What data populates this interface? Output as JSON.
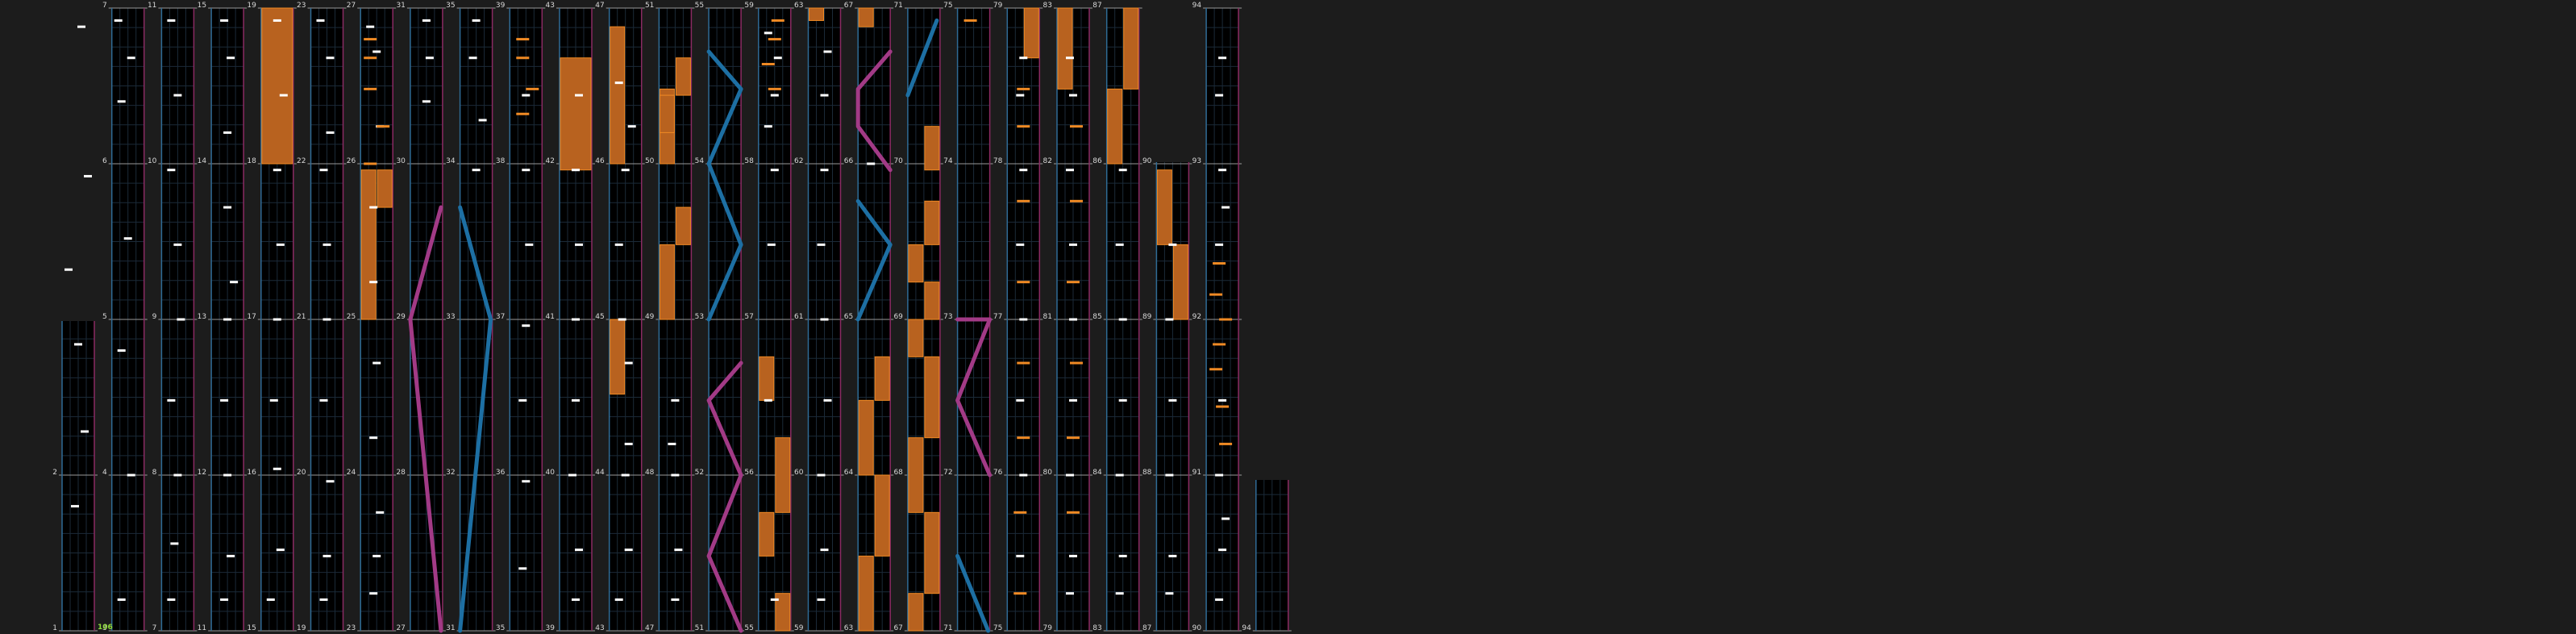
{
  "colors": {
    "background": "#1c1c1c",
    "lane_bg": "#000000",
    "left_edge": "#2f6b96",
    "right_edge": "#8a2a62",
    "grid": "#1b2a38",
    "note": "#ffffff",
    "note_alt": "#f08a24",
    "hold": "#b8621f",
    "hold_edge": "#f08a24",
    "slide_blue": "#1d6fa3",
    "slide_pink": "#a23a86",
    "measure_text": "#d8d8d8",
    "combo_text": "#8fdc3a"
  },
  "combo_label": "106",
  "columns": [
    {
      "measures": [
        "1",
        "2",
        "3"
      ],
      "notes": [
        [
          0.2,
          0.4
        ],
        [
          0.32,
          0.7
        ],
        [
          0.46,
          0.5
        ],
        [
          0.58,
          0.2
        ],
        [
          0.73,
          0.8
        ],
        [
          0.97,
          0.6
        ]
      ]
    },
    {
      "measures": [
        "3",
        "4",
        "5",
        "6",
        "7"
      ],
      "notes": [
        [
          0.05,
          0.3
        ],
        [
          0.25,
          0.6
        ],
        [
          0.45,
          0.3
        ],
        [
          0.63,
          0.5
        ],
        [
          0.85,
          0.3
        ],
        [
          0.92,
          0.6
        ],
        [
          0.98,
          0.2
        ]
      ]
    },
    {
      "measures": [
        "7",
        "8",
        "9",
        "10",
        "11"
      ],
      "notes": [
        [
          0.05,
          0.3
        ],
        [
          0.14,
          0.4
        ],
        [
          0.25,
          0.5
        ],
        [
          0.37,
          0.3
        ],
        [
          0.5,
          0.6
        ],
        [
          0.62,
          0.5
        ],
        [
          0.74,
          0.3
        ],
        [
          0.86,
          0.5
        ],
        [
          0.98,
          0.3
        ]
      ]
    },
    {
      "measures": [
        "11",
        "12",
        "13",
        "14",
        "15"
      ],
      "notes": [
        [
          0.05,
          0.4
        ],
        [
          0.12,
          0.6
        ],
        [
          0.25,
          0.5
        ],
        [
          0.37,
          0.4
        ],
        [
          0.5,
          0.5
        ],
        [
          0.56,
          0.7
        ],
        [
          0.68,
          0.5
        ],
        [
          0.8,
          0.5
        ],
        [
          0.92,
          0.6
        ],
        [
          0.98,
          0.4
        ]
      ]
    },
    {
      "measures": [
        "15",
        "16",
        "17",
        "18",
        "19"
      ],
      "notes": [
        [
          0.05,
          0.3
        ],
        [
          0.13,
          0.6
        ],
        [
          0.26,
          0.5
        ],
        [
          0.37,
          0.4
        ],
        [
          0.5,
          0.5
        ],
        [
          0.62,
          0.6
        ],
        [
          0.74,
          0.5
        ],
        [
          0.86,
          0.7
        ],
        [
          0.98,
          0.5
        ]
      ],
      "holds": [
        [
          0.75,
          1.0,
          0.0,
          1.0
        ]
      ]
    },
    {
      "measures": [
        "19",
        "20",
        "21",
        "22",
        "23"
      ],
      "notes": [
        [
          0.05,
          0.4
        ],
        [
          0.12,
          0.5
        ],
        [
          0.24,
          0.6
        ],
        [
          0.37,
          0.4
        ],
        [
          0.5,
          0.5
        ],
        [
          0.62,
          0.5
        ],
        [
          0.74,
          0.4
        ],
        [
          0.8,
          0.6
        ],
        [
          0.92,
          0.6
        ],
        [
          0.98,
          0.3
        ]
      ]
    },
    {
      "measures": [
        "23",
        "24",
        "25",
        "26",
        "27"
      ],
      "notes": [
        [
          0.06,
          0.4
        ],
        [
          0.12,
          0.5
        ],
        [
          0.19,
          0.6
        ],
        [
          0.31,
          0.4
        ],
        [
          0.43,
          0.5
        ],
        [
          0.56,
          0.4
        ],
        [
          0.68,
          0.4
        ],
        [
          0.81,
          0.6
        ],
        [
          0.93,
          0.5
        ],
        [
          0.97,
          0.3
        ]
      ],
      "orange": [
        [
          0.75,
          0.3
        ],
        [
          0.81,
          0.7
        ],
        [
          0.87,
          0.3
        ],
        [
          0.92,
          0.3
        ],
        [
          0.95,
          0.3
        ]
      ],
      "holds": [
        [
          0.5,
          0.74,
          0.0,
          0.5
        ],
        [
          0.68,
          0.74,
          0.5,
          1.0
        ]
      ]
    },
    {
      "measures": [
        "27",
        "28",
        "29",
        "30",
        "31"
      ],
      "slides": [
        {
          "color": "pink",
          "points": [
            [
              0.0,
              0.95
            ],
            [
              0.5,
              0.0
            ],
            [
              0.68,
              0.95
            ]
          ]
        }
      ],
      "notes": [
        [
          0.85,
          0.5
        ],
        [
          0.92,
          0.6
        ],
        [
          0.98,
          0.5
        ]
      ]
    },
    {
      "measures": [
        "31",
        "32",
        "33",
        "34",
        "35"
      ],
      "slides": [
        {
          "color": "blue",
          "points": [
            [
              0.0,
              0.0
            ],
            [
              0.5,
              0.95
            ],
            [
              0.68,
              0.0
            ]
          ]
        }
      ],
      "notes": [
        [
          0.74,
          0.5
        ],
        [
          0.82,
          0.7
        ],
        [
          0.92,
          0.4
        ],
        [
          0.98,
          0.5
        ]
      ]
    },
    {
      "measures": [
        "35",
        "36",
        "37",
        "38",
        "39"
      ],
      "notes": [
        [
          0.1,
          0.4
        ],
        [
          0.24,
          0.5
        ],
        [
          0.37,
          0.4
        ],
        [
          0.49,
          0.5
        ],
        [
          0.62,
          0.6
        ],
        [
          0.74,
          0.5
        ],
        [
          0.86,
          0.5
        ]
      ],
      "orange": [
        [
          0.83,
          0.4
        ],
        [
          0.87,
          0.7
        ],
        [
          0.92,
          0.4
        ],
        [
          0.95,
          0.4
        ]
      ]
    },
    {
      "measures": [
        "39",
        "40",
        "41",
        "42",
        "43"
      ],
      "notes": [
        [
          0.05,
          0.5
        ],
        [
          0.13,
          0.6
        ],
        [
          0.25,
          0.4
        ],
        [
          0.37,
          0.5
        ],
        [
          0.5,
          0.5
        ],
        [
          0.62,
          0.6
        ],
        [
          0.74,
          0.5
        ],
        [
          0.86,
          0.6
        ]
      ],
      "holds": [
        [
          0.74,
          0.92,
          0.0,
          1.0
        ]
      ]
    },
    {
      "measures": [
        "43",
        "44",
        "45",
        "46",
        "47"
      ],
      "notes": [
        [
          0.05,
          0.3
        ],
        [
          0.13,
          0.6
        ],
        [
          0.25,
          0.5
        ],
        [
          0.3,
          0.6
        ],
        [
          0.43,
          0.6
        ],
        [
          0.5,
          0.4
        ],
        [
          0.62,
          0.3
        ],
        [
          0.74,
          0.5
        ],
        [
          0.81,
          0.7
        ],
        [
          0.88,
          0.3
        ]
      ],
      "holds": [
        [
          0.38,
          0.5,
          0.0,
          0.5
        ],
        [
          0.75,
          0.97,
          0.0,
          0.5
        ]
      ]
    },
    {
      "measures": [
        "47",
        "48",
        "49",
        "50",
        "51"
      ],
      "notes": [
        [
          0.05,
          0.5
        ],
        [
          0.13,
          0.6
        ],
        [
          0.25,
          0.5
        ],
        [
          0.3,
          0.4
        ],
        [
          0.37,
          0.5
        ]
      ],
      "holds": [
        [
          0.5,
          0.62,
          0.0,
          0.5
        ],
        [
          0.75,
          0.87,
          0.0,
          0.5
        ],
        [
          0.62,
          0.68,
          0.5,
          1.0
        ],
        [
          0.8,
          0.86,
          0.0,
          0.5
        ],
        [
          0.86,
          0.92,
          0.5,
          1.0
        ]
      ]
    },
    {
      "measures": [
        "51",
        "52",
        "53",
        "54",
        "55"
      ],
      "slides": [
        {
          "color": "pink",
          "points": [
            [
              0.0,
              1.0
            ],
            [
              0.12,
              0.0
            ],
            [
              0.25,
              1.0
            ],
            [
              0.37,
              0.0
            ],
            [
              0.43,
              1.0
            ]
          ]
        },
        {
          "color": "blue",
          "points": [
            [
              0.5,
              0.0
            ],
            [
              0.62,
              1.0
            ],
            [
              0.75,
              0.0
            ],
            [
              0.87,
              1.0
            ],
            [
              0.93,
              0.0
            ]
          ]
        }
      ]
    },
    {
      "measures": [
        "55",
        "56",
        "57",
        "58",
        "59"
      ],
      "notes": [
        [
          0.05,
          0.5
        ],
        [
          0.37,
          0.3
        ],
        [
          0.62,
          0.4
        ],
        [
          0.74,
          0.5
        ],
        [
          0.81,
          0.3
        ],
        [
          0.86,
          0.5
        ],
        [
          0.92,
          0.6
        ],
        [
          0.96,
          0.3
        ]
      ],
      "holds": [
        [
          0.0,
          0.06,
          0.5,
          1.0
        ],
        [
          0.12,
          0.19,
          0.0,
          0.5
        ],
        [
          0.19,
          0.31,
          0.5,
          1.0
        ],
        [
          0.37,
          0.44,
          0.0,
          0.5
        ]
      ],
      "orange": [
        [
          0.87,
          0.5
        ],
        [
          0.91,
          0.3
        ],
        [
          0.95,
          0.5
        ],
        [
          0.98,
          0.6
        ]
      ]
    },
    {
      "measures": [
        "59",
        "60",
        "61",
        "62",
        "63"
      ],
      "notes": [
        [
          0.05,
          0.4
        ],
        [
          0.13,
          0.5
        ],
        [
          0.25,
          0.4
        ],
        [
          0.37,
          0.6
        ],
        [
          0.5,
          0.5
        ],
        [
          0.62,
          0.4
        ],
        [
          0.74,
          0.5
        ],
        [
          0.86,
          0.5
        ],
        [
          0.93,
          0.6
        ]
      ],
      "holds": [
        [
          0.98,
          1.0,
          0.0,
          0.5
        ]
      ]
    },
    {
      "measures": [
        "63",
        "64",
        "65",
        "66",
        "67"
      ],
      "notes": [
        [
          0.75,
          0.4
        ]
      ],
      "holds": [
        [
          0.0,
          0.12,
          0.0,
          0.5
        ],
        [
          0.12,
          0.25,
          0.5,
          1.0
        ],
        [
          0.25,
          0.37,
          0.0,
          0.5
        ],
        [
          0.37,
          0.44,
          0.5,
          1.0
        ],
        [
          0.97,
          1.0,
          0.0,
          0.5
        ]
      ],
      "slides": [
        {
          "color": "blue",
          "points": [
            [
              0.5,
              0.0
            ],
            [
              0.62,
              1.0
            ],
            [
              0.69,
              0.0
            ]
          ]
        },
        {
          "color": "pink",
          "points": [
            [
              0.74,
              1.0
            ],
            [
              0.81,
              0.0
            ],
            [
              0.87,
              0.0
            ],
            [
              0.93,
              1.0
            ]
          ]
        }
      ]
    },
    {
      "measures": [
        "67",
        "68",
        "69",
        "70",
        "71"
      ],
      "holds": [
        [
          0.0,
          0.06,
          0.0,
          0.5
        ],
        [
          0.06,
          0.19,
          0.5,
          1.0
        ],
        [
          0.19,
          0.31,
          0.0,
          0.5
        ],
        [
          0.31,
          0.44,
          0.5,
          1.0
        ],
        [
          0.44,
          0.5,
          0.0,
          0.5
        ],
        [
          0.5,
          0.56,
          0.5,
          1.0
        ],
        [
          0.56,
          0.62,
          0.0,
          0.5
        ],
        [
          0.62,
          0.69,
          0.5,
          1.0
        ],
        [
          0.74,
          0.81,
          0.5,
          1.0
        ]
      ],
      "slides": [
        {
          "color": "blue",
          "points": [
            [
              0.86,
              0.0
            ],
            [
              0.98,
              0.9
            ]
          ]
        }
      ]
    },
    {
      "measures": [
        "71",
        "72",
        "73",
        "74",
        "75"
      ],
      "slides": [
        {
          "color": "blue",
          "points": [
            [
              0.0,
              0.95
            ],
            [
              0.12,
              0.0
            ]
          ]
        },
        {
          "color": "pink",
          "points": [
            [
              0.25,
              1.0
            ],
            [
              0.37,
              0.0
            ],
            [
              0.5,
              1.0
            ],
            [
              0.5,
              0.0
            ]
          ]
        }
      ],
      "orange": [
        [
          0.98,
          0.4
        ]
      ]
    },
    {
      "measures": [
        "75",
        "76",
        "77",
        "78",
        "79"
      ],
      "notes": [
        [
          0.12,
          0.4
        ],
        [
          0.25,
          0.5
        ],
        [
          0.37,
          0.4
        ],
        [
          0.5,
          0.5
        ],
        [
          0.62,
          0.4
        ],
        [
          0.74,
          0.5
        ],
        [
          0.86,
          0.4
        ],
        [
          0.92,
          0.5
        ]
      ],
      "orange": [
        [
          0.06,
          0.4
        ],
        [
          0.19,
          0.4
        ],
        [
          0.31,
          0.5
        ],
        [
          0.43,
          0.5
        ],
        [
          0.56,
          0.5
        ],
        [
          0.69,
          0.5
        ],
        [
          0.81,
          0.5
        ],
        [
          0.87,
          0.5
        ]
      ],
      "holds": [
        [
          0.92,
          1.0,
          0.5,
          1.0
        ]
      ]
    },
    {
      "measures": [
        "79",
        "80",
        "81",
        "82",
        "83"
      ],
      "notes": [
        [
          0.06,
          0.4
        ],
        [
          0.12,
          0.5
        ],
        [
          0.25,
          0.4
        ],
        [
          0.37,
          0.5
        ],
        [
          0.5,
          0.5
        ],
        [
          0.62,
          0.5
        ],
        [
          0.74,
          0.4
        ],
        [
          0.86,
          0.5
        ],
        [
          0.92,
          0.4
        ]
      ],
      "orange": [
        [
          0.19,
          0.5
        ],
        [
          0.31,
          0.5
        ],
        [
          0.43,
          0.6
        ],
        [
          0.56,
          0.5
        ],
        [
          0.69,
          0.6
        ],
        [
          0.81,
          0.6
        ]
      ],
      "holds": [
        [
          0.87,
          1.0,
          0.0,
          0.5
        ]
      ]
    },
    {
      "measures": [
        "83",
        "84",
        "85",
        "86",
        "87"
      ],
      "notes": [
        [
          0.06,
          0.4
        ],
        [
          0.12,
          0.5
        ],
        [
          0.25,
          0.4
        ],
        [
          0.37,
          0.5
        ],
        [
          0.5,
          0.5
        ],
        [
          0.62,
          0.4
        ],
        [
          0.74,
          0.5
        ]
      ],
      "holds": [
        [
          0.75,
          0.87,
          0.0,
          0.5
        ],
        [
          0.87,
          1.0,
          0.5,
          1.0
        ]
      ]
    },
    {
      "measures": [
        "87",
        "88",
        "89",
        "90"
      ],
      "notes": [
        [
          0.06,
          0.4
        ],
        [
          0.12,
          0.5
        ],
        [
          0.25,
          0.4
        ],
        [
          0.37,
          0.5
        ],
        [
          0.5,
          0.4
        ],
        [
          0.62,
          0.5
        ]
      ],
      "holds": [
        [
          0.5,
          0.62,
          0.5,
          1.0
        ],
        [
          0.62,
          0.74,
          0.0,
          0.5
        ]
      ]
    },
    {
      "measures": [
        "90",
        "91",
        "92",
        "93",
        "94"
      ],
      "notes": [
        [
          0.05,
          0.4
        ],
        [
          0.13,
          0.5
        ],
        [
          0.18,
          0.6
        ],
        [
          0.25,
          0.4
        ],
        [
          0.37,
          0.5
        ],
        [
          0.62,
          0.4
        ],
        [
          0.68,
          0.6
        ],
        [
          0.74,
          0.5
        ],
        [
          0.86,
          0.4
        ],
        [
          0.92,
          0.5
        ]
      ],
      "orange": [
        [
          0.3,
          0.6
        ],
        [
          0.36,
          0.5
        ],
        [
          0.42,
          0.3
        ],
        [
          0.46,
          0.4
        ],
        [
          0.5,
          0.6
        ],
        [
          0.54,
          0.3
        ],
        [
          0.59,
          0.4
        ]
      ]
    },
    {
      "measures": [
        "94",
        "95"
      ]
    }
  ]
}
